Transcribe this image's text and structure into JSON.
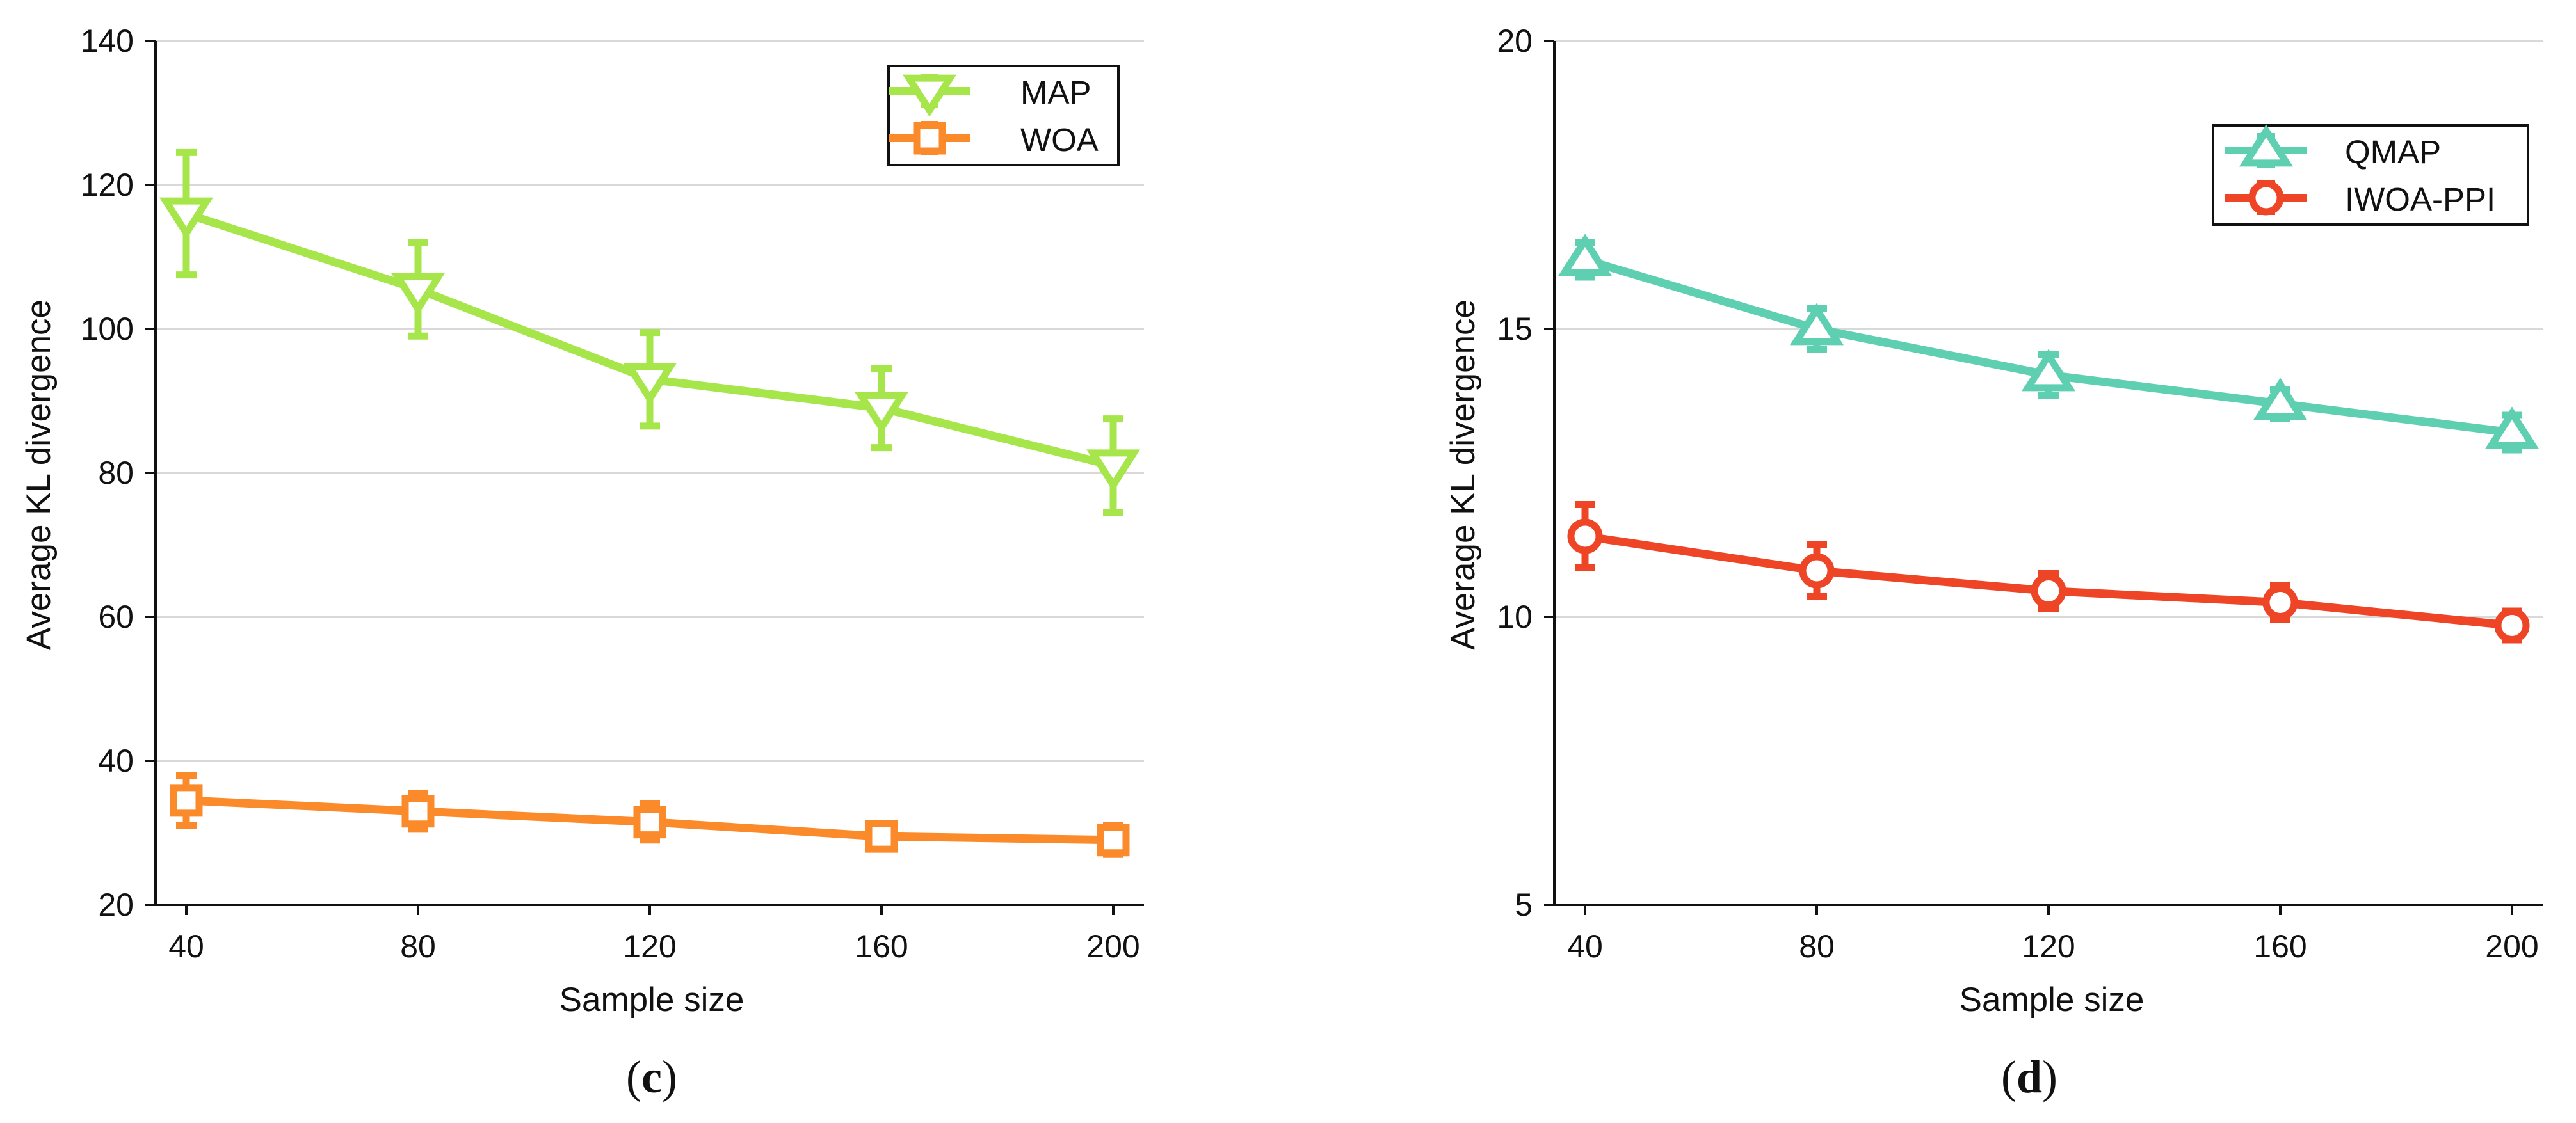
{
  "chart_data": [
    {
      "type": "line",
      "panel_label": "c",
      "xlabel": "Sample size",
      "ylabel": "Average KL divergence",
      "x": [
        40,
        80,
        120,
        160,
        200
      ],
      "xticks": [
        "40",
        "80",
        "120",
        "160",
        "200"
      ],
      "yticks": [
        "20",
        "40",
        "60",
        "80",
        "100",
        "120",
        "140"
      ],
      "ylim": [
        20,
        140
      ],
      "grid": "horizontal",
      "legend_position": "top-right",
      "series": [
        {
          "name": "MAP",
          "color": "#a6e64a",
          "marker": "triangle-down",
          "values": [
            116,
            105.5,
            93,
            89,
            81
          ],
          "error": [
            8.5,
            6.5,
            6.5,
            5.5,
            6.5
          ]
        },
        {
          "name": "WOA",
          "color": "#fb8a2a",
          "marker": "square",
          "values": [
            34.5,
            33,
            31.5,
            29.5,
            29
          ],
          "error": [
            3.5,
            2.5,
            2.5,
            1.5,
            2
          ]
        }
      ]
    },
    {
      "type": "line",
      "panel_label": "d",
      "xlabel": "Sample size",
      "ylabel": "Average KL divergence",
      "x": [
        40,
        80,
        120,
        160,
        200
      ],
      "xticks": [
        "40",
        "80",
        "120",
        "160",
        "200"
      ],
      "yticks": [
        "5",
        "10",
        "15",
        "20"
      ],
      "ylim": [
        5,
        20
      ],
      "grid": "horizontal",
      "legend_position": "top-right",
      "series": [
        {
          "name": "QMAP",
          "color": "#5ecfb1",
          "marker": "triangle-up",
          "values": [
            16.2,
            15.0,
            14.2,
            13.7,
            13.2
          ],
          "error": [
            0.3,
            0.35,
            0.35,
            0.25,
            0.3
          ]
        },
        {
          "name": "IWOA-PPI",
          "color": "#ee4527",
          "marker": "circle",
          "values": [
            11.4,
            10.8,
            10.45,
            10.25,
            9.85
          ],
          "error": [
            0.55,
            0.45,
            0.3,
            0.3,
            0.25
          ]
        }
      ]
    }
  ]
}
